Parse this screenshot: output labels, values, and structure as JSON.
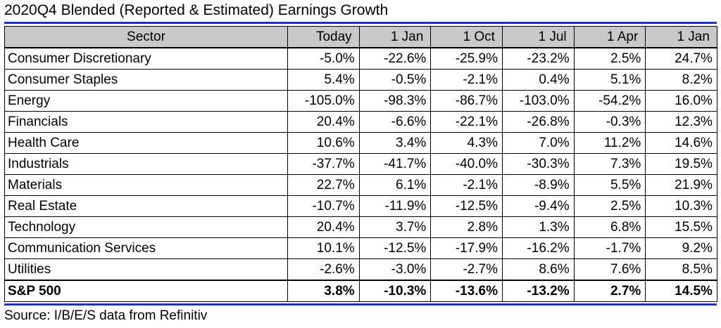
{
  "title": "2020Q4 Blended (Reported & Estimated) Earnings Growth",
  "source": "Source: I/B/E/S data from Refinitiv",
  "colors": {
    "rule": "#1f2fc4",
    "header_bg": "#c9c9c9"
  },
  "table": {
    "columns": [
      "Sector",
      "Today",
      "1 Jan",
      "1 Oct",
      "1 Jul",
      "1 Apr",
      "1 Jan"
    ],
    "rows": [
      [
        "Consumer Discretionary",
        "-5.0%",
        "-22.6%",
        "-25.9%",
        "-23.2%",
        "2.5%",
        "24.7%"
      ],
      [
        "Consumer Staples",
        "5.4%",
        "-0.5%",
        "-2.1%",
        "0.4%",
        "5.1%",
        "8.2%"
      ],
      [
        "Energy",
        "-105.0%",
        "-98.3%",
        "-86.7%",
        "-103.0%",
        "-54.2%",
        "16.0%"
      ],
      [
        "Financials",
        "20.4%",
        "-6.6%",
        "-22.1%",
        "-26.8%",
        "-0.3%",
        "12.3%"
      ],
      [
        "Health Care",
        "10.6%",
        "3.4%",
        "4.3%",
        "7.0%",
        "11.2%",
        "14.6%"
      ],
      [
        "Industrials",
        "-37.7%",
        "-41.7%",
        "-40.0%",
        "-30.3%",
        "7.3%",
        "19.5%"
      ],
      [
        "Materials",
        "22.7%",
        "6.1%",
        "-2.1%",
        "-8.9%",
        "5.5%",
        "21.9%"
      ],
      [
        "Real Estate",
        "-10.7%",
        "-11.9%",
        "-12.5%",
        "-9.4%",
        "2.5%",
        "10.3%"
      ],
      [
        "Technology",
        "20.4%",
        "3.7%",
        "2.8%",
        "1.3%",
        "6.8%",
        "15.5%"
      ],
      [
        "Communication Services",
        "10.1%",
        "-12.5%",
        "-17.9%",
        "-16.2%",
        "-1.7%",
        "9.2%"
      ],
      [
        "Utilities",
        "-2.6%",
        "-3.0%",
        "-2.7%",
        "8.6%",
        "7.6%",
        "8.5%"
      ]
    ],
    "total": [
      "S&P 500",
      "3.8%",
      "-10.3%",
      "-13.6%",
      "-13.2%",
      "2.7%",
      "14.5%"
    ]
  }
}
